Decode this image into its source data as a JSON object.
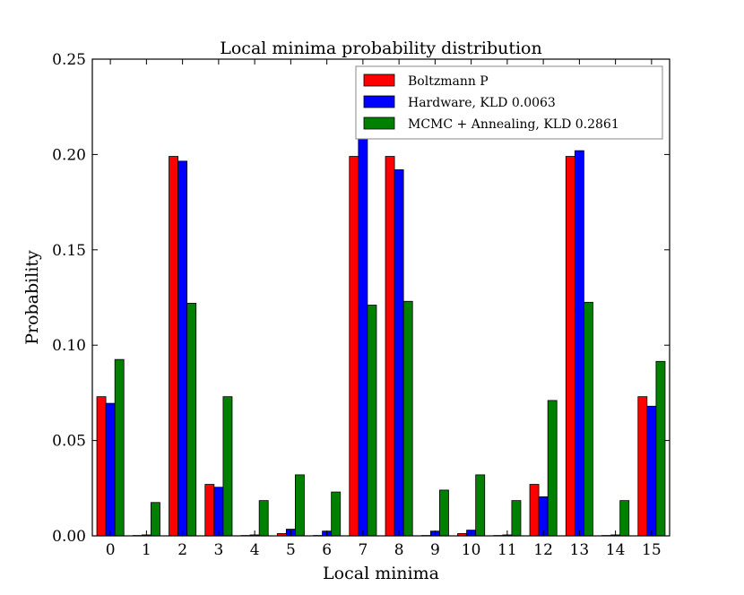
{
  "chart_data": {
    "type": "bar",
    "title": "Local minima probability distribution",
    "xlabel": "Local minima",
    "ylabel": "Probability",
    "ylim": [
      0,
      0.25
    ],
    "yticks": [
      "0.00",
      "0.05",
      "0.10",
      "0.15",
      "0.20",
      "0.25"
    ],
    "legend_position": "top-right",
    "categories": [
      "0",
      "1",
      "2",
      "3",
      "4",
      "5",
      "6",
      "7",
      "8",
      "9",
      "10",
      "11",
      "12",
      "13",
      "14",
      "15"
    ],
    "series": [
      {
        "name": "Boltzmann P",
        "color": "#ff0000",
        "values": [
          0.073,
          0.0002,
          0.199,
          0.027,
          0.0002,
          0.0012,
          0.0002,
          0.199,
          0.199,
          0.0002,
          0.0012,
          0.0002,
          0.027,
          0.199,
          0.0002,
          0.073
        ]
      },
      {
        "name": "Hardware, KLD 0.0063",
        "color": "#0000ff",
        "values": [
          0.0695,
          0.0005,
          0.1965,
          0.0255,
          0.0005,
          0.0035,
          0.0025,
          0.2135,
          0.192,
          0.0025,
          0.003,
          0.0005,
          0.0205,
          0.202,
          0.0005,
          0.068
        ]
      },
      {
        "name": "MCMC + Annealing, KLD 0.2861",
        "color": "#008000",
        "values": [
          0.0925,
          0.0175,
          0.122,
          0.073,
          0.0185,
          0.032,
          0.023,
          0.121,
          0.123,
          0.024,
          0.032,
          0.0185,
          0.071,
          0.1225,
          0.0185,
          0.0915
        ]
      }
    ]
  }
}
